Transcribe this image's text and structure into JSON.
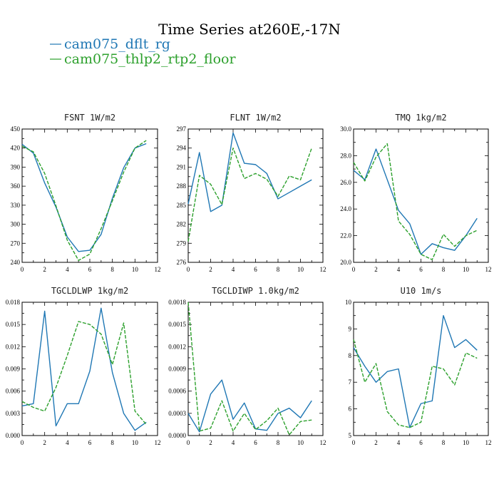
{
  "title": "Time Series at260E,-17N",
  "legend": [
    {
      "name": "cam075_dflt_rg",
      "color": "#1f77b4",
      "dash": "solid"
    },
    {
      "name": "cam075_thlp2_rtp2_floor",
      "color": "#2ca02c",
      "dash": "dashed"
    }
  ],
  "chart_data": [
    {
      "type": "line",
      "title": "FSNT  1W/m2",
      "x": [
        0,
        1,
        2,
        3,
        4,
        5,
        6,
        7,
        8,
        9,
        10,
        11
      ],
      "xlim": [
        0,
        12
      ],
      "xticks": [
        0,
        2,
        4,
        6,
        8,
        10,
        12
      ],
      "ylim": [
        240,
        450
      ],
      "yticks": [
        240,
        270,
        300,
        330,
        360,
        390,
        420,
        450
      ],
      "ytick_labels": [
        "240",
        "270",
        "300",
        "330",
        "360",
        "390",
        "420",
        "450"
      ],
      "series": [
        {
          "name": "cam075_dflt_rg",
          "values": [
            426,
            412,
            365,
            327,
            280,
            257,
            259,
            284,
            341,
            389,
            420,
            427
          ]
        },
        {
          "name": "cam075_thlp2_rtp2_floor",
          "values": [
            423,
            414,
            380,
            329,
            275,
            243,
            253,
            293,
            337,
            382,
            420,
            432
          ]
        }
      ]
    },
    {
      "type": "line",
      "title": "FLNT  1W/m2",
      "x": [
        0,
        1,
        2,
        3,
        4,
        5,
        6,
        7,
        8,
        9,
        10,
        11
      ],
      "xlim": [
        0,
        12
      ],
      "xticks": [
        0,
        2,
        4,
        6,
        8,
        10,
        12
      ],
      "ylim": [
        276,
        297
      ],
      "yticks": [
        276,
        279,
        282,
        285,
        288,
        291,
        294,
        297
      ],
      "ytick_labels": [
        "276",
        "279",
        "282",
        "285",
        "288",
        "291",
        "294",
        "297"
      ],
      "series": [
        {
          "name": "cam075_dflt_rg",
          "values": [
            285.2,
            293.3,
            284.0,
            285.0,
            296.4,
            291.6,
            291.4,
            290.0,
            286.0,
            287.0,
            288.0,
            289.0
          ]
        },
        {
          "name": "cam075_thlp2_rtp2_floor",
          "values": [
            279.3,
            289.7,
            288.3,
            285.1,
            294.0,
            289.2,
            290.0,
            289.1,
            286.4,
            289.6,
            289.0,
            294.0
          ]
        }
      ]
    },
    {
      "type": "line",
      "title": "TMQ  1kg/m2",
      "x": [
        0,
        1,
        2,
        3,
        4,
        5,
        6,
        7,
        8,
        9,
        10,
        11
      ],
      "xlim": [
        0,
        12
      ],
      "xticks": [
        0,
        2,
        4,
        6,
        8,
        10,
        12
      ],
      "ylim": [
        20,
        30
      ],
      "yticks": [
        20,
        22,
        24,
        26,
        28,
        30
      ],
      "ytick_labels": [
        "20.0",
        "22.0",
        "24.0",
        "26.0",
        "28.0",
        "30.0"
      ],
      "series": [
        {
          "name": "cam075_dflt_rg",
          "values": [
            26.9,
            26.2,
            28.5,
            26.2,
            23.9,
            22.9,
            20.6,
            21.4,
            21.1,
            20.9,
            22.0,
            23.3
          ]
        },
        {
          "name": "cam075_thlp2_rtp2_floor",
          "values": [
            27.5,
            26.1,
            27.9,
            28.9,
            23.1,
            22.1,
            20.6,
            20.2,
            22.1,
            21.2,
            22.0,
            22.4
          ]
        }
      ]
    },
    {
      "type": "line",
      "title": "TGCLDLWP  1kg/m2",
      "x": [
        0,
        1,
        2,
        3,
        4,
        5,
        6,
        7,
        8,
        9,
        10,
        11
      ],
      "xlim": [
        0,
        12
      ],
      "xticks": [
        0,
        2,
        4,
        6,
        8,
        10,
        12
      ],
      "ylim": [
        0,
        0.018
      ],
      "yticks": [
        0,
        0.003,
        0.006,
        0.009,
        0.012,
        0.015,
        0.018
      ],
      "ytick_labels": [
        "0.000",
        "0.003",
        "0.006",
        "0.009",
        "0.012",
        "0.015",
        "0.018"
      ],
      "series": [
        {
          "name": "cam075_dflt_rg",
          "values": [
            0.004,
            0.0043,
            0.0168,
            0.0013,
            0.0043,
            0.0043,
            0.0087,
            0.0172,
            0.0085,
            0.003,
            0.0007,
            0.0018
          ]
        },
        {
          "name": "cam075_thlp2_rtp2_floor",
          "values": [
            0.0046,
            0.0038,
            0.0033,
            0.0065,
            0.0108,
            0.0154,
            0.015,
            0.0137,
            0.0096,
            0.0152,
            0.0033,
            0.0015
          ]
        }
      ]
    },
    {
      "type": "line",
      "title": "TGCLDIWP  1.0kg/m2",
      "x": [
        0,
        1,
        2,
        3,
        4,
        5,
        6,
        7,
        8,
        9,
        10,
        11
      ],
      "xlim": [
        0,
        12
      ],
      "xticks": [
        0,
        2,
        4,
        6,
        8,
        10,
        12
      ],
      "ylim": [
        0,
        0.0018
      ],
      "yticks": [
        0,
        0.0003,
        0.0006,
        0.0009,
        0.0012,
        0.0015,
        0.0018
      ],
      "ytick_labels": [
        "0.0000",
        "0.0003",
        "0.0006",
        "0.0009",
        "0.0012",
        "0.0015",
        "0.0018"
      ],
      "series": [
        {
          "name": "cam075_dflt_rg",
          "values": [
            0.0003,
            5e-05,
            0.00056,
            0.00075,
            0.00022,
            0.00044,
            9e-05,
            7e-05,
            0.0003,
            0.00037,
            0.00024,
            0.00047
          ]
        },
        {
          "name": "cam075_thlp2_rtp2_floor",
          "values": [
            0.0018,
            6e-05,
            0.0001,
            0.00047,
            6e-05,
            0.0003,
            8e-05,
            0.0002,
            0.00037,
            1e-05,
            0.00019,
            0.00021
          ]
        }
      ]
    },
    {
      "type": "line",
      "title": "U10  1m/s",
      "x": [
        0,
        1,
        2,
        3,
        4,
        5,
        6,
        7,
        8,
        9,
        10,
        11
      ],
      "xlim": [
        0,
        12
      ],
      "xticks": [
        0,
        2,
        4,
        6,
        8,
        10,
        12
      ],
      "ylim": [
        5,
        10
      ],
      "yticks": [
        5,
        6,
        7,
        8,
        9,
        10
      ],
      "ytick_labels": [
        "5",
        "6",
        "7",
        "8",
        "9",
        "10"
      ],
      "series": [
        {
          "name": "cam075_dflt_rg",
          "values": [
            8.3,
            7.6,
            7.0,
            7.4,
            7.5,
            5.3,
            6.2,
            6.3,
            9.5,
            8.3,
            8.6,
            8.2
          ]
        },
        {
          "name": "cam075_thlp2_rtp2_floor",
          "values": [
            8.6,
            7.0,
            7.7,
            5.9,
            5.4,
            5.3,
            5.5,
            7.6,
            7.5,
            6.9,
            8.1,
            7.9
          ]
        }
      ]
    }
  ]
}
